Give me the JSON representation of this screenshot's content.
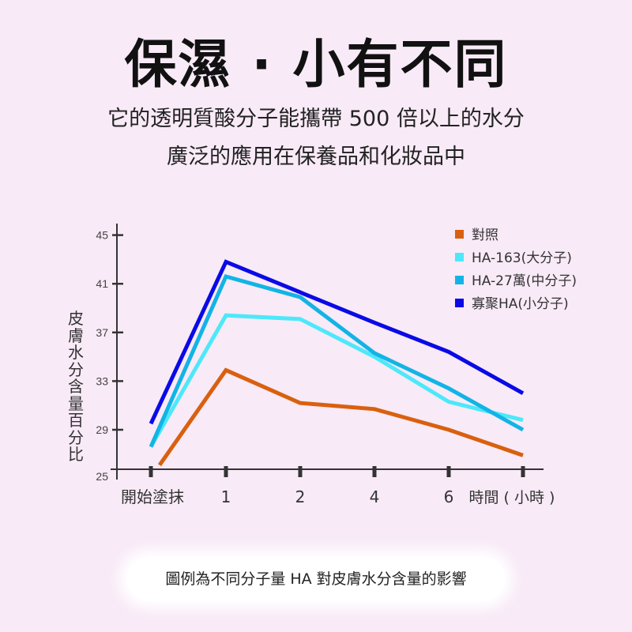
{
  "header": {
    "title": "保濕 · 小有不同",
    "subtitle_line1": "它的透明質酸分子能攜帶 500 倍以上的水分",
    "subtitle_line2": "廣泛的應用在保養品和化妝品中"
  },
  "caption": "圖例為不同分子量 HA 對皮膚水分含量的影響",
  "chart_data": {
    "type": "line",
    "title": "",
    "xlabel": "時間 ( 小時 )",
    "ylabel": "皮膚水分含量百分比",
    "categories": [
      "開始塗抹",
      "1",
      "2",
      "4",
      "6",
      ""
    ],
    "ylim": [
      25,
      45
    ],
    "yticks": [
      "25",
      "29",
      "33",
      "37",
      "41",
      "45"
    ],
    "legend_position": "top-right",
    "series": [
      {
        "name": "對照",
        "color": "#d9600f",
        "values": [
          26.1,
          33.9,
          31.2,
          30.7,
          29.0,
          26.9
        ]
      },
      {
        "name": "HA-163(大分子)",
        "color": "#4de8fa",
        "values": [
          27.6,
          38.4,
          38.1,
          35.0,
          31.3,
          29.8
        ]
      },
      {
        "name": "HA-27萬(中分子)",
        "color": "#12b4e6",
        "values": [
          27.6,
          41.6,
          39.9,
          35.3,
          32.4,
          29.0
        ]
      },
      {
        "name": "寡聚HA(小分子)",
        "color": "#0a0ae6",
        "values": [
          29.5,
          42.8,
          40.3,
          37.8,
          35.4,
          32.0
        ]
      }
    ]
  }
}
